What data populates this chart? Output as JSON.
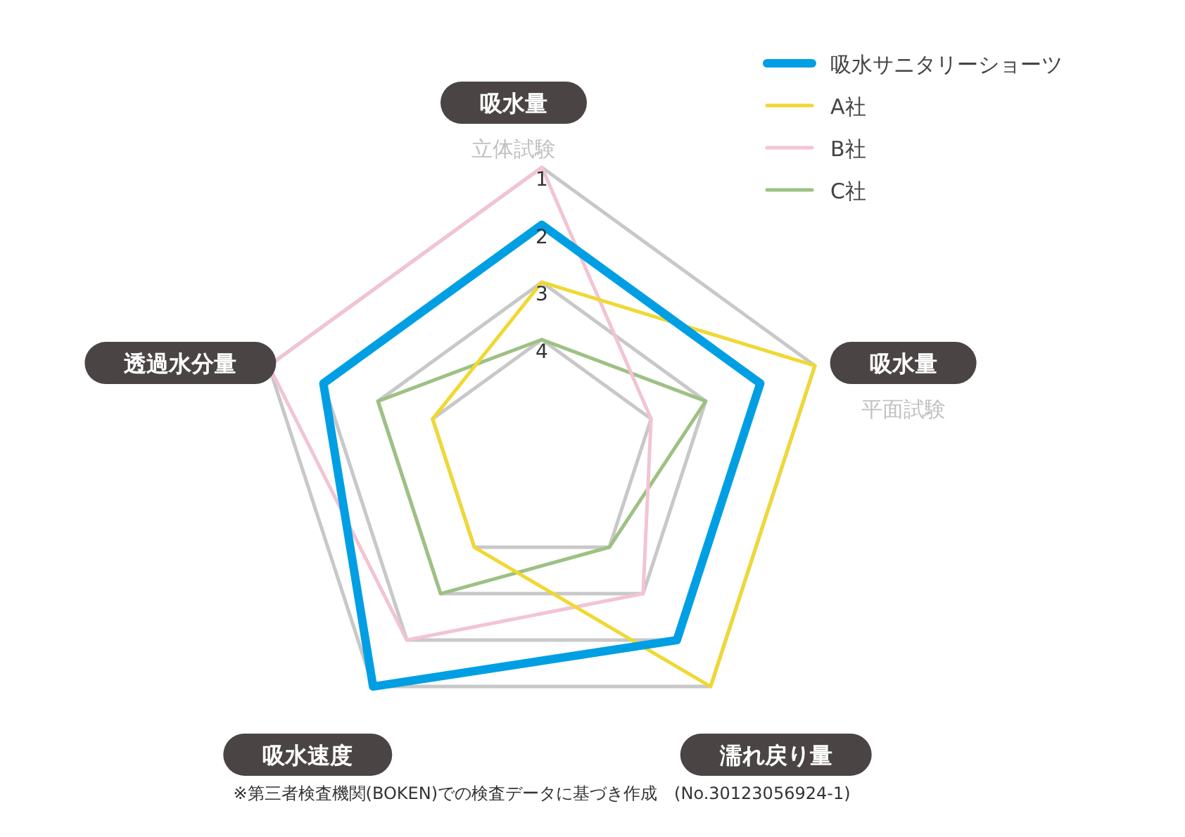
{
  "chart_data": {
    "type": "radar",
    "categories": [
      "吸水量立体試験",
      "吸水量平面試験",
      "濡れ戻り量",
      "吸水速度",
      "透過水分量"
    ],
    "ylim": [
      6,
      1
    ],
    "yticks": [
      1,
      2,
      3,
      4
    ],
    "legend": "top right",
    "series": [
      {
        "name": "吸水サニタリーショーツ",
        "color": "#009fe3",
        "values": [
          2,
          2,
          2,
          1,
          2
        ]
      },
      {
        "name": "A社",
        "color": "#f0d832",
        "values": [
          3,
          1,
          1,
          4,
          4
        ]
      },
      {
        "name": "B社",
        "color": "#f2c4d3",
        "values": [
          1,
          4,
          3,
          2,
          1
        ]
      },
      {
        "name": "C社",
        "color": "#9dc184",
        "values": [
          4,
          3,
          4,
          3,
          3
        ]
      }
    ],
    "annotations": [
      "※第三者検査機関(BOKEN)での検査データに基づき作成　(No.30123056924-1)"
    ]
  }
}
